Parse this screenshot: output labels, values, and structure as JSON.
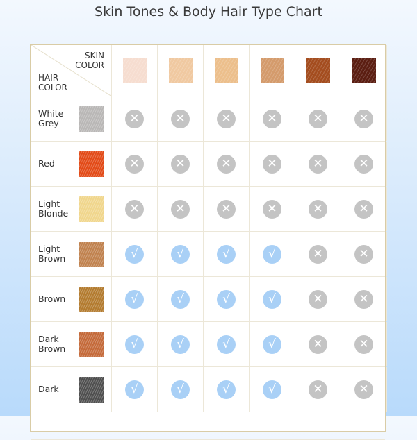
{
  "title": "Skin Tones & Body Hair Type Chart",
  "header": {
    "skin_label": "SKIN\nCOLOR",
    "hair_label": "HAIR\nCOLOR"
  },
  "skin_tones": [
    "#f6ddd0",
    "#f0c9a1",
    "#ecbf8c",
    "#d49b6c",
    "#a44d1f",
    "#5b1e12"
  ],
  "colors": {
    "check": "#a9d0f6",
    "cross": "#c4c4c4",
    "border": "#d9cca6"
  },
  "rows": [
    {
      "label": "White\nGrey",
      "swatch": "#b9b7b6",
      "marks": [
        "x",
        "x",
        "x",
        "x",
        "x",
        "x"
      ]
    },
    {
      "label": "Red",
      "swatch": "#e24a17",
      "marks": [
        "x",
        "x",
        "x",
        "x",
        "x",
        "x"
      ]
    },
    {
      "label": "Light\nBlonde",
      "swatch": "#f0d68c",
      "marks": [
        "x",
        "x",
        "x",
        "x",
        "x",
        "x"
      ]
    },
    {
      "label": "Light\nBrown",
      "swatch": "#c0824f",
      "marks": [
        "check",
        "check",
        "check",
        "check",
        "x",
        "x"
      ]
    },
    {
      "label": "Brown",
      "swatch": "#b37b2f",
      "marks": [
        "check",
        "check",
        "check",
        "check",
        "x",
        "x"
      ]
    },
    {
      "label": "Dark\nBrown",
      "swatch": "#c46a3a",
      "marks": [
        "check",
        "check",
        "check",
        "check",
        "x",
        "x"
      ]
    },
    {
      "label": "Dark",
      "swatch": "#4f4f4f",
      "marks": [
        "check",
        "check",
        "check",
        "check",
        "x",
        "x"
      ]
    }
  ]
}
